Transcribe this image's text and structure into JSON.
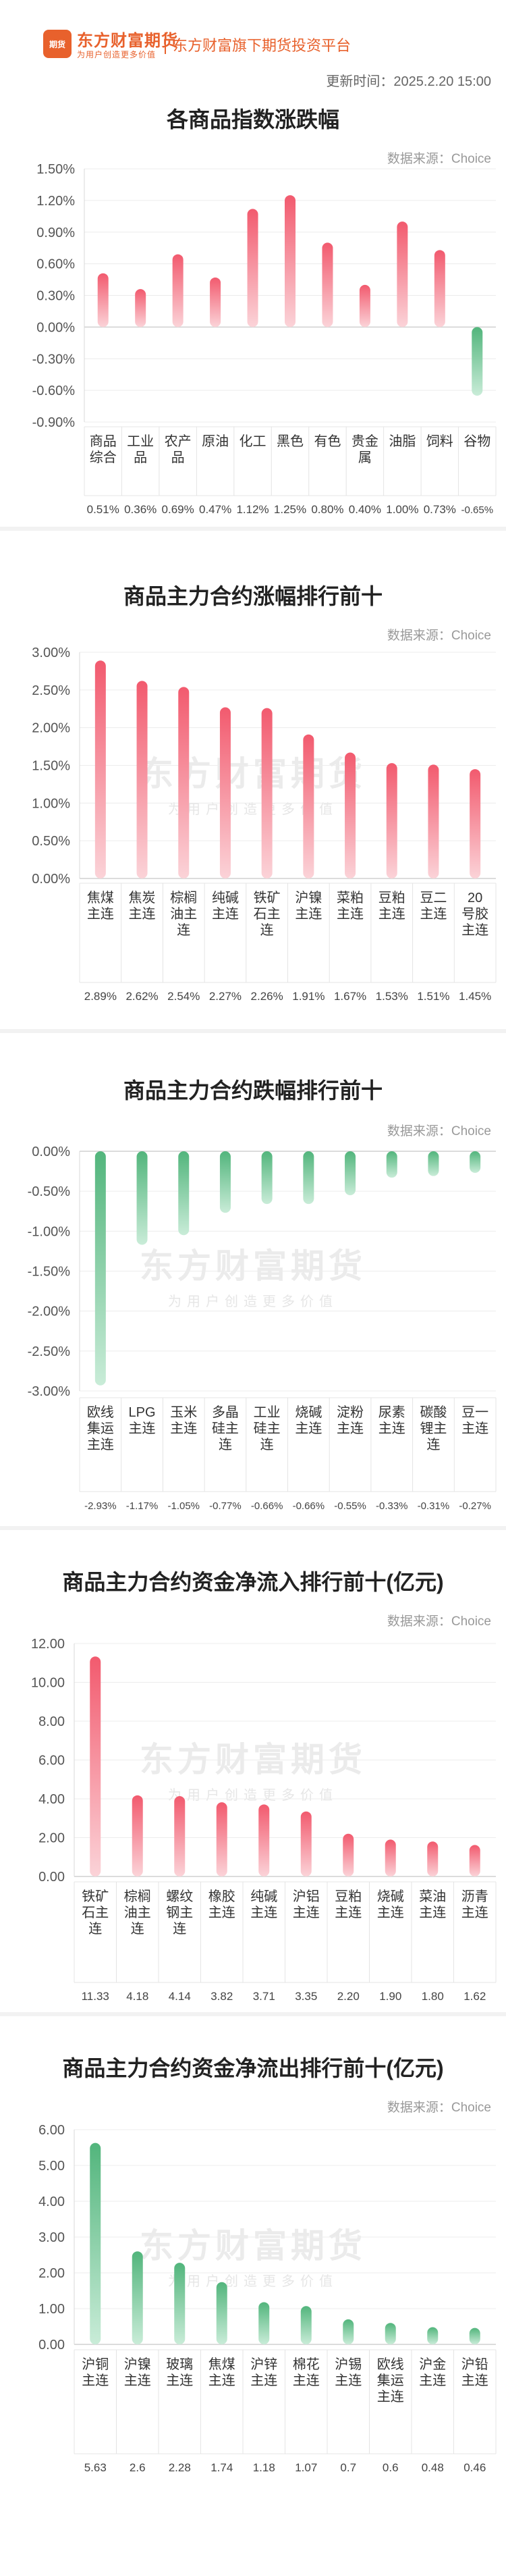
{
  "header": {
    "logo_badge": "期货",
    "brand": "东方财富期货",
    "slogan": "为用户创造更多价值",
    "platform": "东方财富旗下期货投资平台",
    "update_time": "更新时间：2025.2.20 15:00"
  },
  "watermark": {
    "brand": "东方财富期货",
    "slogan": "为用户创造更多价值"
  },
  "colors": {
    "up": "#f25a6e",
    "down": "#52b57c"
  },
  "chart_data": [
    {
      "type": "bar",
      "title": "各商品指数涨跌幅",
      "source": "数据来源：Choice",
      "categories": [
        "商品综合",
        "工业品",
        "农产品",
        "原油",
        "化工",
        "黑色",
        "有色",
        "贵金属",
        "油脂",
        "饲料",
        "谷物"
      ],
      "values": [
        0.51,
        0.36,
        0.69,
        0.47,
        1.12,
        1.25,
        0.8,
        0.4,
        1.0,
        0.73,
        -0.65
      ],
      "value_labels": [
        "0.51%",
        "0.36%",
        "0.69%",
        "0.47%",
        "1.12%",
        "1.25%",
        "0.80%",
        "0.40%",
        "1.00%",
        "0.73%",
        "-0.65%"
      ],
      "ylim": [
        -0.9,
        1.5
      ],
      "yticks": [
        1.5,
        1.2,
        0.9,
        0.6,
        0.3,
        0,
        -0.3,
        -0.6,
        -0.9
      ],
      "ytick_labels": [
        "1.50%",
        "1.20%",
        "0.90%",
        "0.60%",
        "0.30%",
        "0.00%",
        "-0.30%",
        "-0.60%",
        "-0.90%"
      ]
    },
    {
      "type": "bar",
      "title": "商品主力合约涨幅排行前十",
      "source": "数据来源：Choice",
      "categories": [
        "焦煤主连",
        "焦炭主连",
        "棕榈油主连",
        "纯碱主连",
        "铁矿石主连",
        "沪镍主连",
        "菜粕主连",
        "豆粕主连",
        "豆二主连",
        "20号胶主连"
      ],
      "values": [
        2.89,
        2.62,
        2.54,
        2.27,
        2.26,
        1.91,
        1.67,
        1.53,
        1.51,
        1.45
      ],
      "value_labels": [
        "2.89%",
        "2.62%",
        "2.54%",
        "2.27%",
        "2.26%",
        "1.91%",
        "1.67%",
        "1.53%",
        "1.51%",
        "1.45%"
      ],
      "ylim": [
        0,
        3.0
      ],
      "yticks": [
        3,
        2.5,
        2,
        1.5,
        1,
        0.5,
        0
      ],
      "ytick_labels": [
        "3.00%",
        "2.50%",
        "2.00%",
        "1.50%",
        "1.00%",
        "0.50%",
        "0.00%"
      ]
    },
    {
      "type": "bar",
      "title": "商品主力合约跌幅排行前十",
      "source": "数据来源：Choice",
      "categories": [
        "欧线集运主连",
        "LPG主连",
        "玉米主连",
        "多晶硅主连",
        "工业硅主连",
        "烧碱主连",
        "淀粉主连",
        "尿素主连",
        "碳酸锂主连",
        "豆一主连"
      ],
      "values": [
        -2.93,
        -1.17,
        -1.05,
        -0.77,
        -0.66,
        -0.66,
        -0.55,
        -0.33,
        -0.31,
        -0.27
      ],
      "value_labels": [
        "-2.93%",
        "-1.17%",
        "-1.05%",
        "-0.77%",
        "-0.66%",
        "-0.66%",
        "-0.55%",
        "-0.33%",
        "-0.31%",
        "-0.27%"
      ],
      "ylim": [
        -3.0,
        0
      ],
      "yticks": [
        0,
        -0.5,
        -1,
        -1.5,
        -2,
        -2.5,
        -3
      ],
      "ytick_labels": [
        "0.00%",
        "-0.50%",
        "-1.00%",
        "-1.50%",
        "-2.00%",
        "-2.50%",
        "-3.00%"
      ]
    },
    {
      "type": "bar",
      "title": "商品主力合约资金净流入排行前十(亿元)",
      "source": "数据来源：Choice",
      "categories": [
        "铁矿石主连",
        "棕榈油主连",
        "螺纹钢主连",
        "橡胶主连",
        "纯碱主连",
        "沪铝主连",
        "豆粕主连",
        "烧碱主连",
        "菜油主连",
        "沥青主连"
      ],
      "values": [
        11.33,
        4.18,
        4.14,
        3.82,
        3.71,
        3.35,
        2.2,
        1.9,
        1.8,
        1.62
      ],
      "value_labels": [
        "11.33",
        "4.18",
        "4.14",
        "3.82",
        "3.71",
        "3.35",
        "2.20",
        "1.90",
        "1.80",
        "1.62"
      ],
      "ylim": [
        0,
        12
      ],
      "yticks": [
        12,
        10,
        8,
        6,
        4,
        2,
        0
      ],
      "ytick_labels": [
        "12.00",
        "10.00",
        "8.00",
        "6.00",
        "4.00",
        "2.00",
        "0.00"
      ]
    },
    {
      "type": "bar",
      "title": "商品主力合约资金净流出排行前十(亿元)",
      "source": "数据来源：Choice",
      "categories": [
        "沪铜主连",
        "沪镍主连",
        "玻璃主连",
        "焦煤主连",
        "沪锌主连",
        "棉花主连",
        "沪锡主连",
        "欧线集运主连",
        "沪金主连",
        "沪铅主连"
      ],
      "values": [
        5.63,
        2.6,
        2.28,
        1.74,
        1.18,
        1.07,
        0.7,
        0.6,
        0.48,
        0.46
      ],
      "value_labels": [
        "5.63",
        "2.6",
        "2.28",
        "1.74",
        "1.18",
        "1.07",
        "0.7",
        "0.6",
        "0.48",
        "0.46"
      ],
      "ylim": [
        0,
        6
      ],
      "yticks": [
        6,
        5,
        4,
        3,
        2,
        1,
        0
      ],
      "ytick_labels": [
        "6.00",
        "5.00",
        "4.00",
        "3.00",
        "2.00",
        "1.00",
        "0.00"
      ],
      "color": "down"
    }
  ]
}
